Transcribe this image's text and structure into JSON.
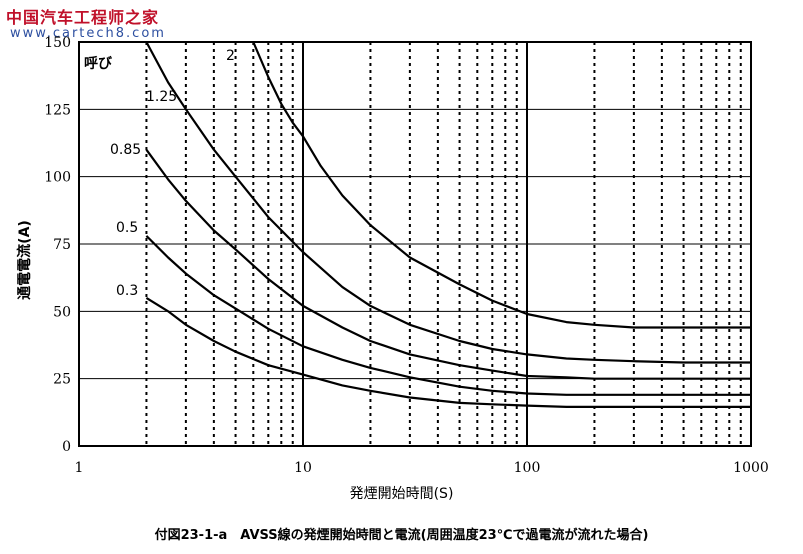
{
  "watermark": {
    "line1": "中国汽车工程师之家",
    "line2": "www.cartech8.com"
  },
  "chart_data": {
    "type": "line",
    "title": "",
    "caption": "付図23-1-a　AVSS線の発煙開始時間と電流(周囲温度23℃で過電流が流れた場合)",
    "xlabel": "発煙開始時間(S)",
    "ylabel": "通電電流(A)",
    "x_scale": "log",
    "xlim": [
      1,
      1000
    ],
    "ylim": [
      0,
      150
    ],
    "x_ticks": [
      "1",
      "10",
      "100",
      "1000"
    ],
    "y_ticks": [
      "0",
      "25",
      "50",
      "75",
      "100",
      "125",
      "150"
    ],
    "grid": {
      "major": "solid",
      "minor": "dotted"
    },
    "legend_header": "呼び",
    "series": [
      {
        "name": "2",
        "x": [
          6,
          7,
          8,
          9,
          10,
          12,
          15,
          20,
          30,
          50,
          70,
          100,
          150,
          200,
          300,
          500,
          1000
        ],
        "y": [
          150,
          137,
          127,
          120,
          115,
          104,
          93,
          82,
          70,
          60,
          54,
          49,
          46,
          45,
          44,
          44,
          44
        ]
      },
      {
        "name": "1.25",
        "x": [
          2,
          2.5,
          3,
          4,
          5,
          7,
          10,
          15,
          20,
          30,
          50,
          70,
          100,
          150,
          200,
          300,
          500,
          1000
        ],
        "y": [
          150,
          135,
          125,
          110,
          100,
          85,
          72,
          59,
          52,
          45,
          39,
          36,
          34,
          32.5,
          32,
          31.5,
          31,
          31
        ]
      },
      {
        "name": "0.85",
        "x": [
          2,
          2.5,
          3,
          4,
          5,
          7,
          10,
          15,
          20,
          30,
          50,
          70,
          100,
          150,
          200,
          300,
          500,
          1000
        ],
        "y": [
          110,
          99,
          91,
          80,
          73,
          62,
          52,
          44,
          39,
          34,
          30,
          28,
          26,
          25.5,
          25,
          25,
          25,
          25
        ]
      },
      {
        "name": "0.5",
        "x": [
          2,
          2.5,
          3,
          4,
          5,
          7,
          10,
          15,
          20,
          30,
          50,
          70,
          100,
          150,
          200,
          300,
          500,
          1000
        ],
        "y": [
          78,
          70,
          64,
          56,
          51,
          43.5,
          37,
          32,
          29,
          25.5,
          22,
          20.5,
          19.5,
          19,
          19,
          19,
          19,
          19
        ]
      },
      {
        "name": "0.3",
        "x": [
          2,
          2.5,
          3,
          4,
          5,
          7,
          10,
          15,
          20,
          30,
          50,
          70,
          100,
          150,
          200,
          300,
          500,
          1000
        ],
        "y": [
          55,
          50,
          45,
          39,
          35,
          30,
          26.5,
          22.5,
          20.5,
          18,
          16,
          15.5,
          15,
          14.5,
          14.5,
          14.5,
          14.5,
          14.5
        ]
      }
    ]
  }
}
